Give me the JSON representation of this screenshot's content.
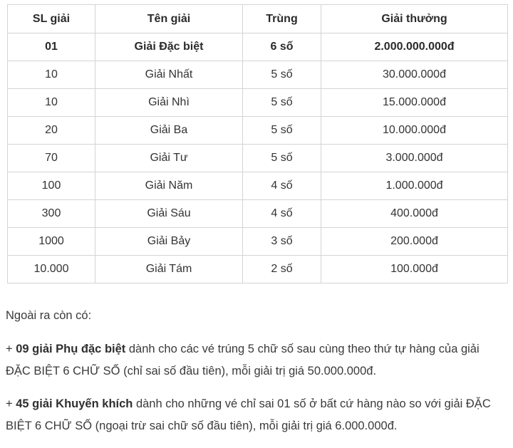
{
  "table": {
    "headers": [
      "SL giải",
      "Tên giải",
      "Trùng",
      "Giải thưởng"
    ],
    "rows": [
      {
        "sl": "01",
        "ten": "Giải Đặc biệt",
        "trung": "6 số",
        "thuong": "2.000.000.000đ",
        "bold": true
      },
      {
        "sl": "10",
        "ten": "Giải Nhất",
        "trung": "5 số",
        "thuong": "30.000.000đ",
        "bold": false
      },
      {
        "sl": "10",
        "ten": "Giải Nhì",
        "trung": "5 số",
        "thuong": "15.000.000đ",
        "bold": false
      },
      {
        "sl": "20",
        "ten": "Giải Ba",
        "trung": "5 số",
        "thuong": "10.000.000đ",
        "bold": false
      },
      {
        "sl": "70",
        "ten": "Giải Tư",
        "trung": "5 số",
        "thuong": "3.000.000đ",
        "bold": false
      },
      {
        "sl": "100",
        "ten": "Giải Năm",
        "trung": "4 số",
        "thuong": "1.000.000đ",
        "bold": false
      },
      {
        "sl": "300",
        "ten": "Giải Sáu",
        "trung": "4 số",
        "thuong": "400.000đ",
        "bold": false
      },
      {
        "sl": "1000",
        "ten": "Giải Bảy",
        "trung": "3 số",
        "thuong": "200.000đ",
        "bold": false
      },
      {
        "sl": "10.000",
        "ten": "Giải Tám",
        "trung": "2 số",
        "thuong": "100.000đ",
        "bold": false
      }
    ]
  },
  "notes": {
    "intro": "Ngoài ra còn có:",
    "note1": {
      "prefix": "+ ",
      "bold": "09 giải Phụ đặc biệt",
      "rest": " dành cho các vé trúng 5 chữ số sau cùng theo thứ tự hàng của giải ĐẶC BIỆT 6 CHỮ SỐ (chỉ sai số đầu tiên), mỗi giải trị giá 50.000.000đ."
    },
    "note2": {
      "prefix": "+ ",
      "bold": "45 giải Khuyến khích",
      "rest": " dành cho những vé chỉ sai 01 số ở bất cứ hàng nào so với giải ĐẶC BIỆT 6 CHỮ SỐ (ngoại trừ sai chữ số đầu tiên), mỗi giải trị giá 6.000.000đ."
    }
  },
  "colors": {
    "border": "#d4d4d4",
    "text": "#333333",
    "background": "#ffffff"
  }
}
